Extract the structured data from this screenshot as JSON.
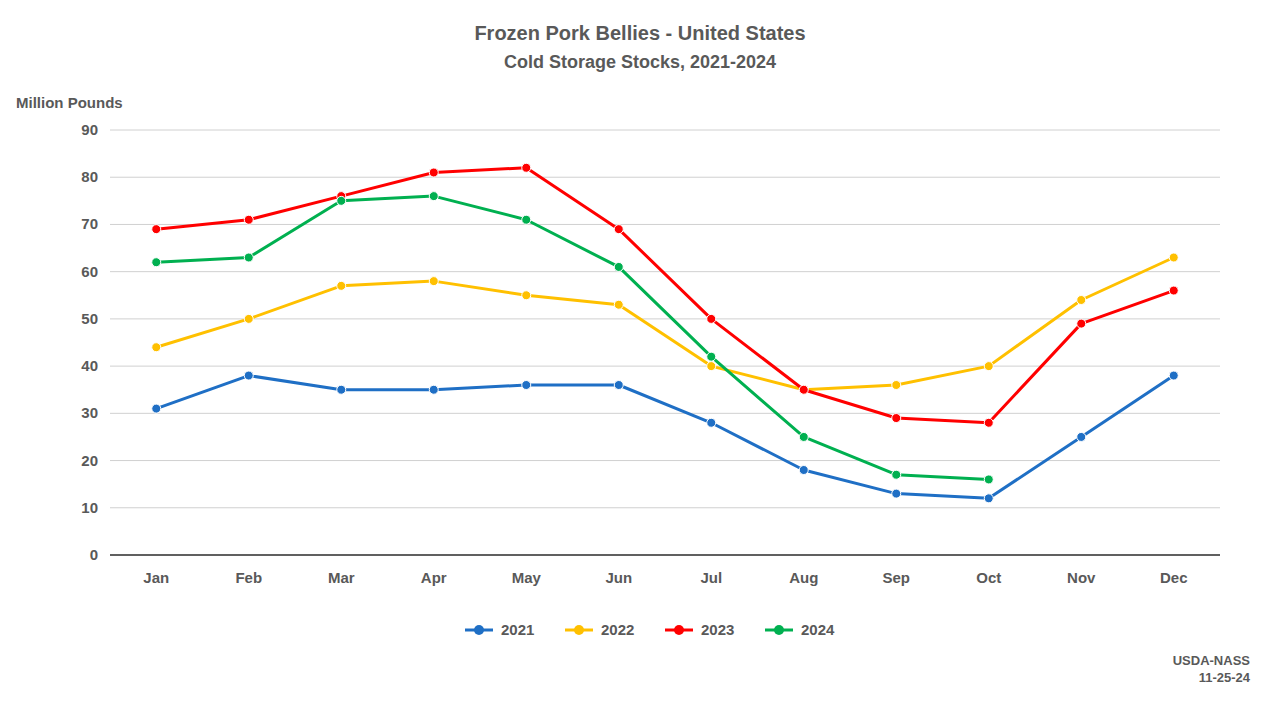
{
  "chart_data": {
    "type": "line",
    "title": "Frozen Pork Bellies - United States",
    "subtitle": "Cold Storage Stocks, 2021-2024",
    "ylabel": "Million Pounds",
    "annotation": "USDA-NASS\n11-25-24",
    "categories": [
      "Jan",
      "Feb",
      "Mar",
      "Apr",
      "May",
      "Jun",
      "Jul",
      "Aug",
      "Sep",
      "Oct",
      "Nov",
      "Dec"
    ],
    "series": [
      {
        "name": "2021",
        "color": "#1f6fc5",
        "values": [
          31,
          38,
          35,
          35,
          36,
          36,
          28,
          18,
          13,
          12,
          25,
          38
        ]
      },
      {
        "name": "2022",
        "color": "#ffc000",
        "values": [
          44,
          50,
          57,
          58,
          55,
          53,
          40,
          35,
          36,
          40,
          54,
          63
        ]
      },
      {
        "name": "2023",
        "color": "#ff0000",
        "values": [
          69,
          71,
          76,
          81,
          82,
          69,
          50,
          35,
          29,
          28,
          49,
          56
        ]
      },
      {
        "name": "2024",
        "color": "#00b050",
        "values": [
          62,
          63,
          75,
          76,
          71,
          61,
          42,
          25,
          17,
          16,
          null,
          null
        ]
      }
    ],
    "marker": "circle",
    "ylim": [
      0,
      90
    ],
    "yticks": [
      0,
      10,
      20,
      30,
      40,
      50,
      60,
      70,
      80,
      90
    ],
    "grid": true,
    "legend": "bottom"
  }
}
